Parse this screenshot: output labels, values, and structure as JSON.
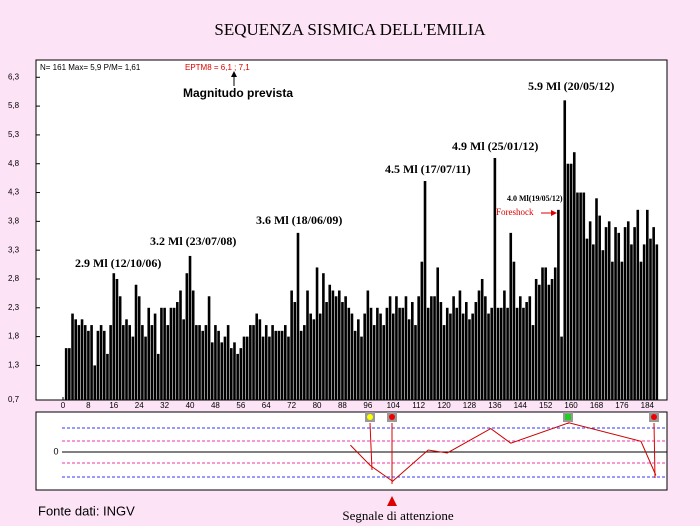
{
  "chart_data": [
    {
      "type": "bar",
      "title": "SEQUENZA SISMICA DELL'EMILIA",
      "stats": "N= 161 Max= 5,9 P/M= 1,61",
      "forecast": "EPTM8 = 6,1 ; 7,1",
      "forecast_label": "Magnitudo prevista",
      "annotations": [
        "2.9 Ml (12/10/06)",
        "3.2 Ml (23/07/08)",
        "3.6 Ml (18/06/09)",
        "4.5 Ml (17/07/11)",
        "4.9 Ml (25/01/12)",
        "4.0 Ml(19/05/12)",
        "Foreshock",
        "5.9 Ml (20/05/12)"
      ],
      "color": "#000000",
      "x": [
        1,
        2,
        3,
        4,
        5,
        6,
        7,
        8,
        9,
        10,
        11,
        12,
        13,
        14,
        15,
        16,
        17,
        18,
        19,
        20,
        21,
        22,
        23,
        24,
        25,
        26,
        27,
        28,
        29,
        30,
        31,
        32,
        33,
        34,
        35,
        36,
        37,
        38,
        39,
        40,
        41,
        42,
        43,
        44,
        45,
        46,
        47,
        48,
        49,
        50,
        51,
        52,
        53,
        54,
        55,
        56,
        57,
        58,
        59,
        60,
        61,
        62,
        63,
        64,
        65,
        66,
        67,
        68,
        69,
        70,
        71,
        72,
        73,
        74,
        75,
        76,
        77,
        78,
        79,
        80,
        81,
        82,
        83,
        84,
        85,
        86,
        87,
        88,
        89,
        90,
        91,
        92,
        93,
        94,
        95,
        96,
        97,
        98,
        99,
        100,
        101,
        102,
        103,
        104,
        105,
        106,
        107,
        108,
        109,
        110,
        111,
        112,
        113,
        114,
        115,
        116,
        117,
        118,
        119,
        120,
        121,
        122,
        123,
        124,
        125,
        126,
        127,
        128,
        129,
        130,
        131,
        132,
        133,
        134,
        135,
        136,
        137,
        138,
        139,
        140,
        141,
        142,
        143,
        144,
        145,
        146,
        147,
        148,
        149,
        150,
        151,
        152,
        153,
        154,
        155,
        156,
        157,
        158,
        159,
        160,
        161,
        162,
        163,
        164,
        165,
        166,
        167,
        168,
        169,
        170,
        171,
        172,
        173,
        174,
        175,
        176,
        177,
        178,
        179,
        180,
        181,
        182,
        183,
        184,
        185,
        186,
        187
      ],
      "values": [
        1.6,
        1.6,
        2.2,
        2.1,
        2.0,
        2.1,
        2.0,
        1.9,
        2.0,
        1.3,
        1.9,
        2.0,
        1.9,
        1.5,
        2.0,
        2.9,
        2.8,
        2.5,
        2.0,
        2.1,
        2.0,
        1.8,
        2.7,
        2.5,
        2.0,
        1.8,
        2.3,
        2.0,
        2.2,
        1.5,
        2.3,
        2.3,
        2.0,
        2.3,
        2.3,
        2.4,
        2.6,
        2.1,
        2.9,
        3.2,
        2.6,
        2.0,
        2.0,
        1.9,
        2.0,
        2.5,
        1.7,
        2.0,
        1.9,
        1.7,
        1.8,
        2.0,
        1.6,
        1.7,
        1.5,
        1.6,
        1.8,
        1.8,
        2.0,
        2.0,
        2.2,
        2.1,
        1.8,
        2.0,
        1.8,
        2.0,
        1.9,
        1.9,
        1.9,
        2.0,
        1.8,
        2.6,
        2.4,
        3.6,
        1.9,
        2.0,
        2.6,
        2.2,
        2.1,
        3.0,
        2.2,
        2.9,
        2.4,
        2.7,
        2.6,
        2.5,
        2.6,
        2.4,
        2.5,
        2.3,
        2.2,
        1.9,
        2.1,
        1.8,
        2.2,
        2.6,
        2.3,
        2.0,
        2.3,
        2.2,
        2.0,
        2.3,
        2.5,
        2.2,
        2.5,
        2.3,
        2.3,
        2.5,
        2.1,
        2.4,
        2.0,
        2.5,
        3.1,
        4.5,
        2.3,
        2.5,
        2.5,
        3.0,
        2.4,
        2.0,
        2.3,
        2.2,
        2.5,
        2.3,
        2.6,
        2.2,
        2.4,
        2.1,
        2.2,
        2.4,
        2.6,
        2.8,
        2.5,
        2.2,
        2.3,
        4.9,
        2.3,
        2.3,
        2.6,
        2.3,
        3.6,
        3.1,
        2.3,
        2.5,
        2.3,
        2.4,
        2.5,
        2.0,
        2.8,
        2.7,
        3.0,
        3.0,
        2.7,
        2.8,
        3.0,
        4.0,
        1.8,
        5.9,
        4.8,
        4.8,
        5.0,
        4.3,
        4.3,
        4.3,
        3.5,
        3.8,
        3.4,
        4.2,
        3.9,
        3.3,
        3.7,
        3.8,
        3.1,
        3.7,
        3.6,
        3.1,
        3.7,
        3.8,
        3.4,
        3.7,
        4.0,
        3.1,
        3.4,
        4.0,
        3.5,
        3.7,
        3.4
      ],
      "xlim": [
        -8.5,
        190.2
      ],
      "xticks": [
        0,
        8,
        16,
        24,
        32,
        40,
        48,
        56,
        64,
        72,
        80,
        88,
        96,
        104,
        112,
        120,
        128,
        136,
        144,
        152,
        160,
        168,
        176,
        184
      ],
      "ylim": [
        0.7,
        6.6
      ],
      "yticks": [
        {
          "value": 0.7,
          "label": "0,7"
        },
        {
          "value": 1.3,
          "label": "1,3"
        },
        {
          "value": 1.8,
          "label": "1,8"
        },
        {
          "value": 2.3,
          "label": "2,3"
        },
        {
          "value": 2.8,
          "label": "2,8"
        },
        {
          "value": 3.3,
          "label": "3,3"
        },
        {
          "value": 3.8,
          "label": "3,8"
        },
        {
          "value": 4.3,
          "label": "4,3"
        },
        {
          "value": 4.8,
          "label": "4,8"
        },
        {
          "value": 5.3,
          "label": "5,3"
        },
        {
          "value": 5.8,
          "label": "5,8"
        },
        {
          "value": 6.3,
          "label": "6,3"
        }
      ]
    },
    {
      "type": "line",
      "color": "#cc0000",
      "x": [
        90.5,
        96.8,
        103.8,
        115,
        121,
        134.7,
        141,
        159.3,
        182,
        186.7
      ],
      "values": [
        0.24,
        -0.6,
        -1.24,
        0.04,
        -0.08,
        0.92,
        0.32,
        1.16,
        0.4,
        -1.0
      ],
      "xlim": [
        -8.5,
        190.2
      ],
      "ylim": [
        -1.6,
        1.6
      ],
      "yticks": [
        0
      ],
      "source": "Fonte dati:  INGV",
      "signal": "Segnale di attenzione"
    }
  ]
}
